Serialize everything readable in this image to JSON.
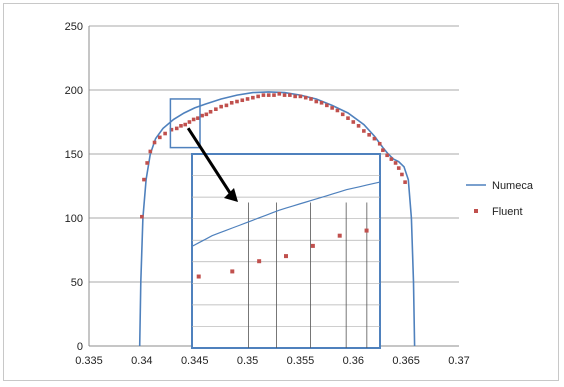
{
  "chart_data": {
    "type": "scatter",
    "title": "",
    "xlabel": "",
    "ylabel": "",
    "xlim": [
      0.335,
      0.37
    ],
    "ylim": [
      0,
      250
    ],
    "x_ticks": [
      "0.335",
      "0.34",
      "0.345",
      "0.35",
      "0.355",
      "0.36",
      "0.365",
      "0.37"
    ],
    "y_ticks": [
      "0",
      "50",
      "100",
      "150",
      "200",
      "250"
    ],
    "grid": "horizontal",
    "legend_position": "right",
    "colors": {
      "Numeca": "#4f81bd",
      "Fluent": "#c0504d",
      "inset_frame": "#4f81bd",
      "arrow": "#000000"
    },
    "series": [
      {
        "name": "Numeca",
        "type": "line",
        "x": [
          0.3398,
          0.3399,
          0.3401,
          0.3404,
          0.3408,
          0.3413,
          0.342,
          0.343,
          0.344,
          0.345,
          0.346,
          0.3475,
          0.349,
          0.3505,
          0.352,
          0.3535,
          0.355,
          0.3565,
          0.358,
          0.3595,
          0.361,
          0.362,
          0.3628,
          0.3633,
          0.3638,
          0.3643,
          0.3648,
          0.3652,
          0.3655,
          0.3657,
          0.3658
        ],
        "y": [
          0,
          50,
          100,
          130,
          150,
          162,
          170,
          177,
          182,
          186,
          189,
          193,
          196,
          198,
          198.5,
          198,
          196,
          193,
          188,
          182,
          173,
          164,
          155,
          150,
          146,
          144,
          140,
          130,
          100,
          50,
          0
        ]
      },
      {
        "name": "Fluent",
        "type": "scatter",
        "x": [
          0.34,
          0.3402,
          0.3405,
          0.3408,
          0.3412,
          0.3417,
          0.3422,
          0.3428,
          0.3433,
          0.3437,
          0.3441,
          0.3445,
          0.3449,
          0.3453,
          0.3457,
          0.3461,
          0.3465,
          0.347,
          0.3475,
          0.348,
          0.3485,
          0.349,
          0.3495,
          0.35,
          0.3505,
          0.351,
          0.3515,
          0.352,
          0.3525,
          0.353,
          0.3535,
          0.354,
          0.3545,
          0.355,
          0.3555,
          0.356,
          0.3565,
          0.357,
          0.3575,
          0.358,
          0.3585,
          0.359,
          0.3595,
          0.36,
          0.3605,
          0.361,
          0.3615,
          0.362,
          0.3625,
          0.3628,
          0.3632,
          0.3636,
          0.364,
          0.3643,
          0.3646,
          0.3649
        ],
        "y": [
          101,
          130,
          143,
          152,
          159,
          163,
          166,
          169,
          170,
          172,
          173,
          175,
          177,
          178,
          180,
          181,
          183,
          185,
          187,
          188,
          190,
          191,
          192,
          193,
          194,
          195,
          196,
          196,
          196,
          197,
          196,
          196,
          195,
          195,
          194,
          193,
          191,
          190,
          188,
          186,
          184,
          181,
          178,
          175,
          172,
          168,
          165,
          162,
          158,
          153,
          149,
          146,
          143,
          139,
          134,
          128
        ]
      }
    ]
  }
}
